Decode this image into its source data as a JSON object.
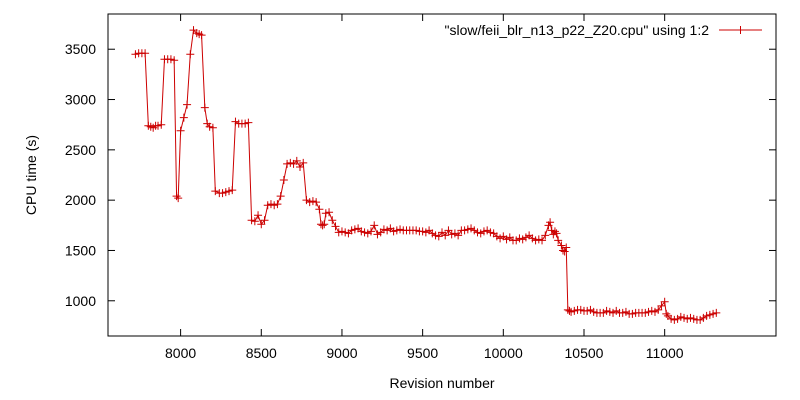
{
  "colors": {
    "series": "#cc0000",
    "axis": "#000000",
    "background": "#ffffff"
  },
  "chart_data": {
    "type": "line",
    "xlabel": "Revision number",
    "ylabel": "CPU time (s)",
    "xlim": [
      7550,
      11690
    ],
    "ylim": [
      650,
      3850
    ],
    "xticks": [
      8000,
      8500,
      9000,
      9500,
      10000,
      10500,
      11000
    ],
    "yticks": [
      1000,
      1500,
      2000,
      2500,
      3000,
      3500
    ],
    "grid": false,
    "legend_position": "top-right",
    "series": [
      {
        "name": "\"slow/feii_blr_n13_p22_Z20.cpu\" using 1:2",
        "style": "lines with + markers",
        "x": [
          7720,
          7740,
          7760,
          7780,
          7800,
          7815,
          7830,
          7845,
          7860,
          7880,
          7900,
          7920,
          7940,
          7960,
          7975,
          7985,
          8000,
          8020,
          8040,
          8060,
          8080,
          8100,
          8115,
          8130,
          8150,
          8165,
          8180,
          8200,
          8215,
          8240,
          8260,
          8280,
          8300,
          8320,
          8340,
          8360,
          8380,
          8400,
          8420,
          8440,
          8460,
          8480,
          8500,
          8520,
          8540,
          8560,
          8580,
          8600,
          8620,
          8640,
          8660,
          8680,
          8700,
          8720,
          8740,
          8760,
          8780,
          8800,
          8820,
          8840,
          8860,
          8870,
          8880,
          8890,
          8900,
          8920,
          8940,
          8960,
          8980,
          9000,
          9020,
          9040,
          9060,
          9080,
          9100,
          9120,
          9140,
          9160,
          9180,
          9200,
          9220,
          9240,
          9260,
          9280,
          9300,
          9320,
          9340,
          9360,
          9380,
          9400,
          9420,
          9440,
          9460,
          9480,
          9500,
          9520,
          9540,
          9560,
          9580,
          9600,
          9620,
          9640,
          9660,
          9680,
          9700,
          9720,
          9740,
          9760,
          9780,
          9800,
          9820,
          9840,
          9860,
          9880,
          9900,
          9920,
          9940,
          9960,
          9980,
          10000,
          10020,
          10040,
          10060,
          10080,
          10100,
          10120,
          10140,
          10160,
          10180,
          10200,
          10220,
          10240,
          10260,
          10280,
          10290,
          10300,
          10310,
          10320,
          10330,
          10340,
          10360,
          10370,
          10380,
          10390,
          10400,
          10410,
          10420,
          10440,
          10460,
          10480,
          10500,
          10520,
          10540,
          10560,
          10580,
          10600,
          10620,
          10640,
          10660,
          10680,
          10700,
          10720,
          10740,
          10760,
          10780,
          10800,
          10820,
          10840,
          10860,
          10880,
          10900,
          10920,
          10940,
          10960,
          10980,
          11000,
          11010,
          11020,
          11040,
          11060,
          11080,
          11100,
          11120,
          11140,
          11160,
          11180,
          11200,
          11220,
          11240,
          11260,
          11280,
          11300,
          11320
        ],
        "y": [
          3450,
          3460,
          3460,
          3460,
          2740,
          2730,
          2720,
          2740,
          2740,
          2750,
          3400,
          3400,
          3400,
          3390,
          2040,
          2020,
          2690,
          2820,
          2950,
          3450,
          3690,
          3660,
          3650,
          3640,
          2920,
          2760,
          2730,
          2720,
          2090,
          2070,
          2070,
          2080,
          2090,
          2100,
          2780,
          2760,
          2760,
          2760,
          2770,
          1800,
          1790,
          1850,
          1760,
          1800,
          1950,
          1960,
          1950,
          1960,
          2040,
          2200,
          2360,
          2370,
          2360,
          2390,
          2330,
          2370,
          2000,
          1980,
          1990,
          1980,
          1910,
          1760,
          1750,
          1760,
          1870,
          1880,
          1800,
          1740,
          1680,
          1690,
          1680,
          1670,
          1700,
          1710,
          1720,
          1690,
          1680,
          1670,
          1690,
          1750,
          1660,
          1680,
          1710,
          1700,
          1720,
          1690,
          1700,
          1710,
          1700,
          1700,
          1700,
          1700,
          1700,
          1690,
          1690,
          1680,
          1700,
          1670,
          1650,
          1640,
          1680,
          1650,
          1700,
          1660,
          1670,
          1650,
          1700,
          1700,
          1710,
          1720,
          1700,
          1680,
          1670,
          1690,
          1700,
          1680,
          1670,
          1640,
          1620,
          1640,
          1610,
          1630,
          1600,
          1600,
          1620,
          1610,
          1630,
          1650,
          1620,
          1600,
          1610,
          1600,
          1650,
          1750,
          1780,
          1700,
          1660,
          1690,
          1670,
          1600,
          1550,
          1500,
          1490,
          1530,
          910,
          900,
          890,
          900,
          910,
          910,
          900,
          900,
          910,
          890,
          880,
          880,
          880,
          900,
          890,
          880,
          900,
          880,
          880,
          890,
          870,
          870,
          880,
          880,
          880,
          880,
          890,
          900,
          890,
          910,
          950,
          990,
          870,
          850,
          820,
          810,
          820,
          840,
          830,
          820,
          830,
          820,
          810,
          810,
          830,
          850,
          860,
          870,
          880
        ]
      }
    ]
  }
}
